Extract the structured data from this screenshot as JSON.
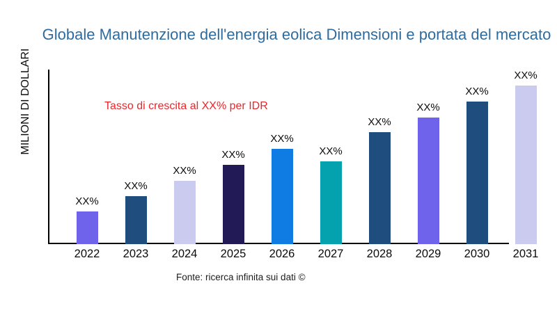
{
  "page": {
    "title": "Globale Manutenzione dell'energia eolica Dimensioni e portata del mercato",
    "annotation": "Tasso di crescita al XX% per IDR",
    "y_axis_label": "MILIONI DI DOLLARI",
    "source": "Fonte: ricerca infinita sui dati ©"
  },
  "colors": {
    "title": "#2E6B9E",
    "annotation": "#E8262B",
    "axis": "#000000",
    "text": "#0B0B0B",
    "background": "#FFFFFF"
  },
  "chart_data": {
    "type": "bar",
    "title": "Globale Manutenzione dell'energia eolica Dimensioni e portata del mercato",
    "xlabel": "",
    "ylabel": "MILIONI DI DOLLARI",
    "categories": [
      "2022",
      "2023",
      "2024",
      "2025",
      "2026",
      "2027",
      "2028",
      "2029",
      "2030",
      "2031"
    ],
    "values": [
      47,
      69,
      91,
      114,
      137,
      119,
      161,
      182,
      205,
      228
    ],
    "values_unit": "relative-bar-height-px (no numeric axis shown in chart)",
    "value_labels": [
      "XX%",
      "XX%",
      "XX%",
      "XX%",
      "XX%",
      "XX%",
      "XX%",
      "XX%",
      "XX%",
      "XX%"
    ],
    "bar_colors": [
      "#6F63EC",
      "#1F4E7E",
      "#CACBEE",
      "#211A57",
      "#0F7CE4",
      "#04A1AF",
      "#1F4E7E",
      "#6F63EC",
      "#1F4E7E",
      "#CACBEE"
    ],
    "annotation": "Tasso di crescita al XX% per IDR",
    "legend": "none",
    "grid": false,
    "y_axis_ticks": "none"
  }
}
